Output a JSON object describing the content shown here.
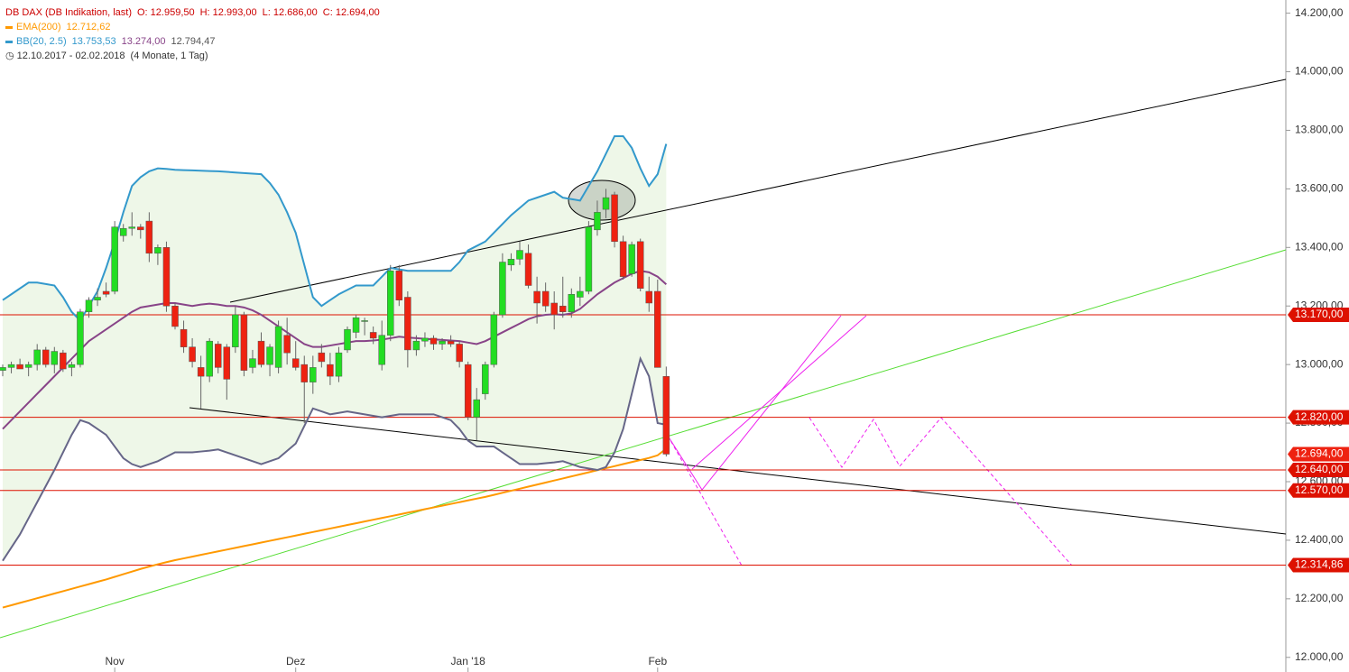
{
  "header": {
    "instrument": "DB DAX (DB Indikation, last)",
    "ohlc": [
      "O: 12.959,50",
      "H: 12.993,00",
      "L: 12.686,00",
      "C: 12.694,00"
    ],
    "ema": "EMA(200)",
    "ema_value": "12.712,62",
    "bb": "BB(20, 2.5)",
    "bb_values": [
      "13.753,53",
      "13.274,00",
      "12.794,47"
    ],
    "range": "12.10.2017 - 02.02.2018",
    "duration": "(4 Monate, 1 Tag)"
  },
  "chart_data": {
    "type": "candlestick",
    "categories": [
      null,
      null,
      null,
      null,
      null,
      null,
      null,
      null,
      null,
      null,
      null,
      null,
      null,
      "Nov",
      null,
      null,
      null,
      null,
      null,
      null,
      null,
      null,
      null,
      null,
      null,
      null,
      null,
      null,
      null,
      null,
      null,
      null,
      null,
      null,
      "Dez",
      null,
      null,
      null,
      null,
      null,
      null,
      null,
      null,
      null,
      null,
      null,
      null,
      null,
      null,
      null,
      null,
      null,
      null,
      null,
      "Jan '18",
      null,
      null,
      null,
      null,
      null,
      null,
      null,
      null,
      null,
      null,
      null,
      null,
      null,
      null,
      null,
      null,
      null,
      null,
      null,
      null,
      null,
      "Feb",
      null
    ],
    "open": [
      12980,
      12990,
      13000,
      12990,
      13000,
      13050,
      13000,
      13040,
      12990,
      13000,
      13180,
      13220,
      13250,
      13250,
      13440,
      13465,
      13470,
      13490,
      13380,
      13400,
      13200,
      13120,
      13060,
      12990,
      12960,
      13070,
      13060,
      13060,
      13170,
      12990,
      13080,
      13000,
      12990,
      13100,
      13020,
      13000,
      12940,
      13040,
      13000,
      12960,
      13050,
      13110,
      13150,
      13110,
      13000,
      13100,
      13320,
      13230,
      13050,
      13080,
      13090,
      13070,
      13080,
      13070,
      13000,
      12820,
      12900,
      13000,
      13170,
      13340,
      13360,
      13380,
      13250,
      13250,
      13210,
      13200,
      13180,
      13230,
      13250,
      13460,
      13530,
      13580,
      13420,
      13310,
      13420,
      13250,
      13250,
      12959.5
    ],
    "high": [
      13000,
      13010,
      13020,
      13010,
      13070,
      13060,
      13060,
      13050,
      13010,
      13190,
      13230,
      13260,
      13280,
      13490,
      13480,
      13520,
      13480,
      13520,
      13410,
      13420,
      13210,
      13150,
      13090,
      13030,
      13090,
      13080,
      13070,
      13200,
      13180,
      13050,
      13110,
      13070,
      13150,
      13160,
      13080,
      13030,
      13030,
      13070,
      13040,
      13060,
      13130,
      13170,
      13160,
      13130,
      13150,
      13340,
      13340,
      13250,
      13100,
      13110,
      13100,
      13090,
      13100,
      13080,
      13010,
      12920,
      13010,
      13180,
      13380,
      13380,
      13420,
      13410,
      13300,
      13280,
      13250,
      13300,
      13260,
      13300,
      13490,
      13560,
      13600,
      13590,
      13440,
      13420,
      13430,
      13300,
      13290,
      12993
    ],
    "low": [
      12960,
      12970,
      12985,
      12960,
      12980,
      12990,
      12970,
      12975,
      12960,
      12990,
      13160,
      13200,
      13230,
      13240,
      13420,
      13440,
      13430,
      13350,
      13340,
      13180,
      13120,
      13040,
      12990,
      12850,
      12940,
      12970,
      12880,
      13040,
      12960,
      12970,
      12990,
      12960,
      12970,
      13000,
      12980,
      12800,
      12900,
      12990,
      12930,
      12940,
      13040,
      13090,
      13100,
      13070,
      12980,
      13080,
      13200,
      12990,
      13030,
      13060,
      13050,
      13050,
      13060,
      12990,
      12810,
      12740,
      12880,
      12990,
      13160,
      13320,
      13340,
      13260,
      13140,
      13180,
      13120,
      13160,
      13160,
      13200,
      13240,
      13440,
      13500,
      13400,
      13290,
      13300,
      13250,
      13180,
      12990,
      12686
    ],
    "close": [
      12990,
      13000,
      12985,
      13000,
      13050,
      13000,
      13045,
      12985,
      13000,
      13180,
      13220,
      13230,
      13240,
      13470,
      13465,
      13470,
      13460,
      13380,
      13400,
      13200,
      13130,
      13060,
      13010,
      12960,
      13080,
      12990,
      12950,
      13170,
      12980,
      13020,
      13000,
      13060,
      13130,
      13040,
      12990,
      12940,
      12990,
      13010,
      12960,
      13040,
      13120,
      13160,
      13150,
      13090,
      13100,
      13320,
      13220,
      13050,
      13080,
      13090,
      13070,
      13080,
      13070,
      13010,
      12820,
      12880,
      13000,
      13170,
      13350,
      13360,
      13390,
      13270,
      13210,
      13200,
      13170,
      13180,
      13240,
      13250,
      13470,
      13520,
      13570,
      13420,
      13300,
      13410,
      13260,
      13210,
      12990,
      12694
    ],
    "up_color": "#22dd22",
    "down_color": "#ee2211",
    "series": [
      {
        "name": "EMA(200)",
        "color": "#ff9900",
        "values": [
          12170,
          12178,
          12186,
          12194,
          12202,
          12210,
          12218,
          12226,
          12234,
          12242,
          12250,
          12258,
          12266,
          12275,
          12284,
          12293,
          12302,
          12310,
          12318,
          12325,
          12332,
          12338,
          12344,
          12350,
          12356,
          12362,
          12368,
          12374,
          12380,
          12386,
          12392,
          12398,
          12404,
          12410,
          12416,
          12422,
          12428,
          12434,
          12440,
          12446,
          12452,
          12458,
          12464,
          12470,
          12476,
          12482,
          12488,
          12494,
          12500,
          12506,
          12512,
          12518,
          12524,
          12530,
          12536,
          12542,
          12548,
          12555,
          12562,
          12569,
          12576,
          12583,
          12590,
          12597,
          12604,
          12611,
          12618,
          12625,
          12632,
          12639,
          12646,
          12653,
          12660,
          12667,
          12674,
          12681,
          12690,
          12712.62
        ]
      },
      {
        "name": "BB upper",
        "color": "#3399cc",
        "values": [
          13220,
          13240,
          13260,
          13280,
          13280,
          13275,
          13270,
          13230,
          13180,
          13150,
          13200,
          13250,
          13330,
          13420,
          13520,
          13610,
          13640,
          13660,
          13670,
          13668,
          13665,
          13664,
          13663,
          13662,
          13661,
          13660,
          13658,
          13656,
          13654,
          13652,
          13650,
          13620,
          13580,
          13520,
          13450,
          13340,
          13230,
          13200,
          13220,
          13240,
          13255,
          13270,
          13270,
          13270,
          13300,
          13330,
          13325,
          13320,
          13320,
          13320,
          13320,
          13320,
          13320,
          13350,
          13390,
          13405,
          13420,
          13450,
          13480,
          13510,
          13535,
          13560,
          13570,
          13580,
          13590,
          13570,
          13565,
          13560,
          13610,
          13660,
          13720,
          13780,
          13780,
          13740,
          13670,
          13610,
          13650,
          13753.53
        ]
      },
      {
        "name": "BB middle",
        "color": "#884488",
        "values": [
          12780,
          12810,
          12840,
          12870,
          12900,
          12930,
          12960,
          12990,
          13020,
          13050,
          13080,
          13100,
          13120,
          13140,
          13160,
          13180,
          13195,
          13200,
          13205,
          13210,
          13210,
          13205,
          13200,
          13205,
          13208,
          13205,
          13200,
          13200,
          13195,
          13185,
          13170,
          13150,
          13130,
          13110,
          13090,
          13070,
          13060,
          13060,
          13065,
          13070,
          13075,
          13080,
          13080,
          13082,
          13085,
          13090,
          13095,
          13092,
          13090,
          13088,
          13086,
          13084,
          13082,
          13080,
          13075,
          13070,
          13080,
          13095,
          13110,
          13125,
          13140,
          13155,
          13165,
          13170,
          13172,
          13170,
          13175,
          13190,
          13215,
          13240,
          13260,
          13280,
          13295,
          13310,
          13320,
          13315,
          13300,
          13274
        ]
      },
      {
        "name": "BB lower",
        "color": "#666688",
        "values": [
          12330,
          12375,
          12420,
          12475,
          12530,
          12585,
          12640,
          12700,
          12760,
          12810,
          12800,
          12780,
          12760,
          12720,
          12680,
          12660,
          12650,
          12660,
          12670,
          12685,
          12700,
          12700,
          12700,
          12703,
          12706,
          12710,
          12700,
          12690,
          12680,
          12670,
          12660,
          12670,
          12680,
          12705,
          12730,
          12790,
          12850,
          12840,
          12830,
          12835,
          12840,
          12835,
          12830,
          12825,
          12820,
          12825,
          12830,
          12830,
          12830,
          12830,
          12830,
          12820,
          12810,
          12780,
          12740,
          12720,
          12720,
          12720,
          12700,
          12680,
          12660,
          12660,
          12660,
          12663,
          12666,
          12670,
          12660,
          12650,
          12645,
          12640,
          12650,
          12700,
          12780,
          12900,
          13020,
          12960,
          12800,
          12794.47
        ]
      }
    ],
    "band_color": "#eef7e8",
    "ylim": [
      11950,
      14245
    ],
    "yticks": [
      {
        "value": 14200,
        "label": "14.200,00"
      },
      {
        "value": 14000,
        "label": "14.000,00"
      },
      {
        "value": 13800,
        "label": "13.800,00"
      },
      {
        "value": 13600,
        "label": "13.600,00"
      },
      {
        "value": 13400,
        "label": "13.400,00"
      },
      {
        "value": 13200,
        "label": "13.200,00"
      },
      {
        "value": 13000,
        "label": "13.000,00"
      },
      {
        "value": 12800,
        "label": "12.800,00"
      },
      {
        "value": 12600,
        "label": "12.600,00"
      },
      {
        "value": 12400,
        "label": "12.400,00"
      },
      {
        "value": 12200,
        "label": "12.200,00"
      },
      {
        "value": 12000,
        "label": "12.000,00"
      }
    ],
    "levels": [
      {
        "value": 13170,
        "label": "13.170,00"
      },
      {
        "value": 12820,
        "label": "12.820,00"
      },
      {
        "value": 12640,
        "label": "12.640,00"
      },
      {
        "value": 12570,
        "label": "12.570,00"
      },
      {
        "value": 12314.86,
        "label": "12.314,86"
      }
    ],
    "level_color": "#dd1100",
    "price_tag": {
      "value": 12694,
      "label": "12.694,00"
    }
  }
}
